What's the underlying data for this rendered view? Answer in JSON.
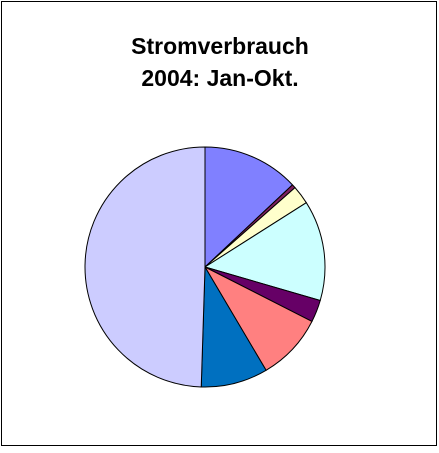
{
  "chart_data": {
    "type": "pie",
    "title": [
      "Stromverbrauch",
      "2004: Jan-Okt."
    ],
    "values": [
      13,
      0.5,
      2.5,
      13.5,
      3,
      9,
      9,
      49.5
    ],
    "colors": [
      "#8080ff",
      "#802060",
      "#ffffcc",
      "#ccffff",
      "#660066",
      "#ff8080",
      "#0070c0",
      "#ccccff"
    ]
  }
}
